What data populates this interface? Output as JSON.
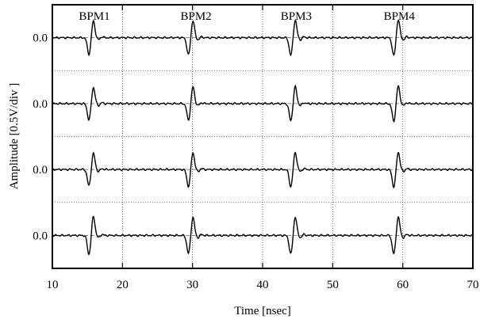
{
  "chart_data": {
    "type": "line",
    "title": "",
    "xlabel": "Time [nsec]",
    "ylabel": "Amplitude  [0.5V/div ]",
    "xlim": [
      10,
      70
    ],
    "x_ticks": [
      "10",
      "20",
      "30",
      "40",
      "50",
      "60",
      "70"
    ],
    "x_tick_values": [
      10,
      20,
      30,
      40,
      50,
      60,
      70
    ],
    "grid": true,
    "panels": 4,
    "panel_zero_label": "0.0",
    "bpm_labels": [
      {
        "text": "BPM1",
        "x": 16
      },
      {
        "text": "BPM2",
        "x": 30.5
      },
      {
        "text": "BPM3",
        "x": 44.8
      },
      {
        "text": "BPM4",
        "x": 59.5
      }
    ],
    "pulse_centers_ns": [
      15.5,
      29.7,
      44.3,
      59.0
    ],
    "pulse_peak_amplitude": [
      [
        -0.72,
        0.74,
        -0.76,
        0.78
      ],
      [
        -0.7,
        0.72,
        -0.73,
        0.76
      ],
      [
        -0.7,
        0.73,
        -0.74,
        0.75
      ],
      [
        -0.82,
        0.78,
        -0.8,
        0.8
      ]
    ],
    "line_color": "#000000",
    "zero_line_color": "#666666"
  }
}
